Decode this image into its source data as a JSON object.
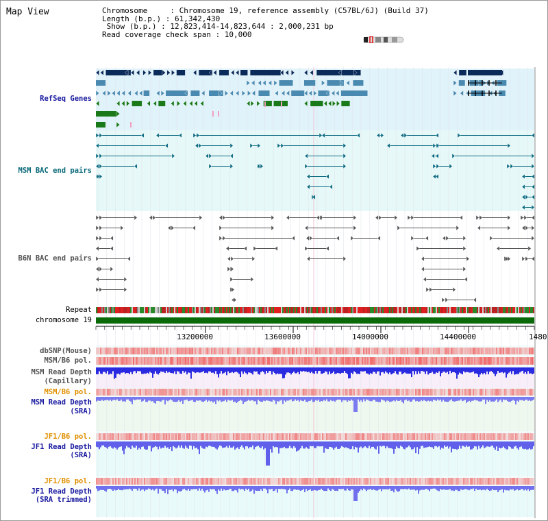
{
  "view": {
    "title": "Map View"
  },
  "info": {
    "chromosome": "Chromosome     : Chromosome 19, reference assembly (C57BL/6J) (Build 37)",
    "length": "Length (b.p.) : 61,342,430",
    "show": " Show (b.p.) : 12,823,414-14,823,644 : 2,000,231 bp",
    "coverage": "Read coverage check span : 10,000"
  },
  "tracks": {
    "refseq": "RefSeq Genes",
    "msm_bac": "MSM BAC end pairs",
    "b6n_bac": "B6N BAC end pairs",
    "repeat": "Repeat",
    "chrom": "chromosome 19",
    "dbsnp": "dbSNP(Mouse)",
    "msm_pol": "MSM/B6 pol.",
    "msm_depth_cap_1": "MSM Read Depth",
    "msm_depth_cap_2": "(Capillary)",
    "msm_pol2": "MSM/B6 pol.",
    "msm_depth_sra_1": "MSM Read Depth",
    "msm_depth_sra_2": "(SRA)",
    "jf1_pol": "JF1/B6 pol.",
    "jf1_depth_1": "JF1 Read Depth",
    "jf1_depth_2": "(SRA)",
    "jf1_pol2": "JF1/B6 pol.",
    "jf1_trim_1": "JF1 Read Depth",
    "jf1_trim_2": "(SRA trimmed)"
  },
  "axis": {
    "ticks": [
      "13200000",
      "13600000",
      "14000000",
      "14400000",
      "1480"
    ]
  },
  "colors": {
    "refseq_bg": "#e0f2fa",
    "bac_bg": "#e6f8f8",
    "gene_dark": "#0a2a5a",
    "gene_mid": "#4a8ab0",
    "gene_green": "#1a7a1a",
    "bac_teal": "#0a6a80",
    "bac_gray": "#555555",
    "chrom_green": "#0a6a0a",
    "depth_blue": "#2020e0",
    "pol_red": "#e03030"
  }
}
